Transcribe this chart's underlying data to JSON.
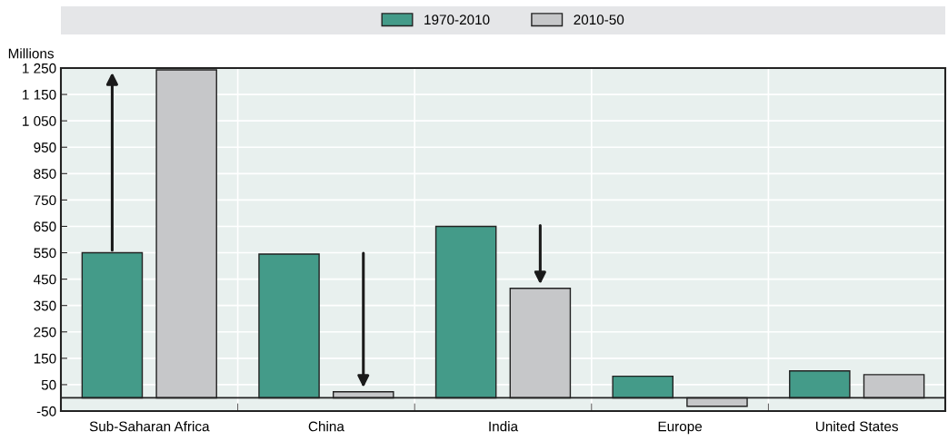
{
  "chart_data": {
    "type": "bar",
    "ylabel": "Millions",
    "categories": [
      "Sub-Saharan Africa",
      "China",
      "India",
      "Europe",
      "United States"
    ],
    "series": [
      {
        "name": "1970-2010",
        "color": "#449b89",
        "values": [
          550,
          545,
          650,
          82,
          102
        ]
      },
      {
        "name": "2010-50",
        "color": "#c6c7c9",
        "values": [
          1243,
          23,
          415,
          -32,
          88
        ]
      }
    ],
    "ylim": [
      -50,
      1250
    ],
    "yticks": [
      {
        "value": -50,
        "label": "-50"
      },
      50,
      150,
      250,
      350,
      450,
      550,
      650,
      750,
      850,
      950,
      {
        "value": 1050,
        "label": "1 050"
      },
      {
        "value": 1150,
        "label": "1 150"
      },
      {
        "value": 1250,
        "label": "1 250"
      }
    ],
    "grid": true,
    "legend": "top"
  }
}
